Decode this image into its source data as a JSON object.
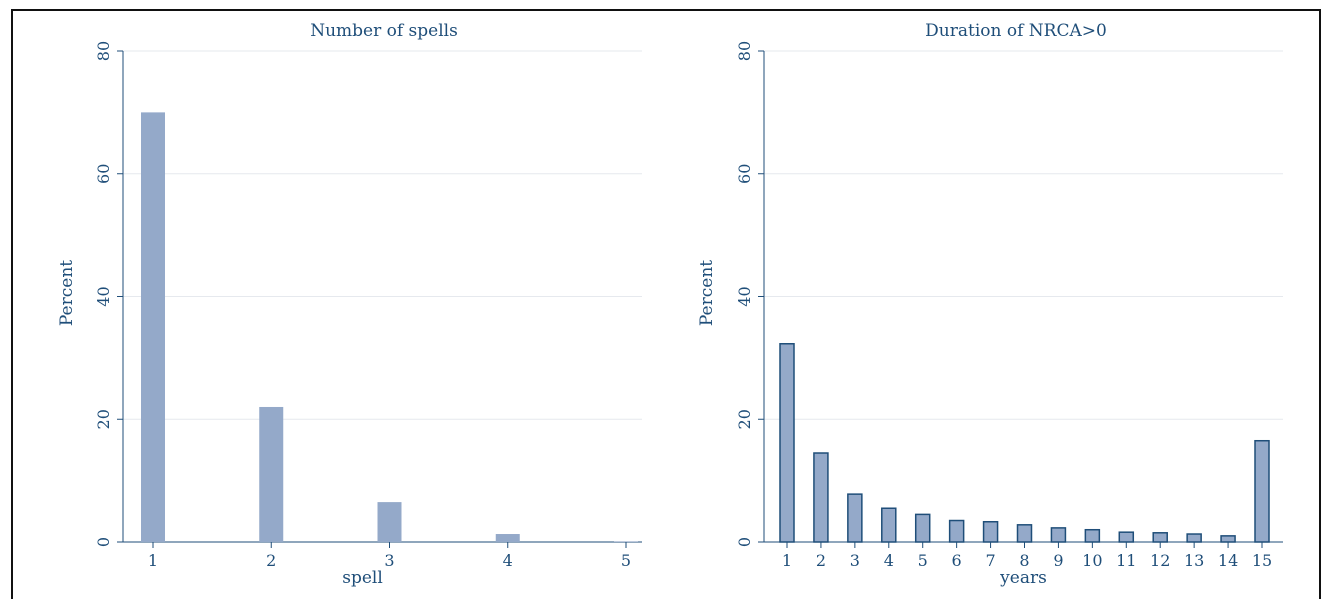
{
  "colors": {
    "bar_fill": "#94a9c9",
    "bar_edge": "#1f4e79",
    "text": "#1f4e79",
    "grid": "#e6e9ee",
    "axis": "#1f4e79"
  },
  "chart_data": [
    {
      "type": "bar",
      "title": "Number of spells",
      "xlabel": "spell",
      "ylabel": "Percent",
      "x": [
        1,
        2,
        3,
        4,
        5
      ],
      "x_ticks": [
        "1",
        "2",
        "3",
        "4",
        "5"
      ],
      "values": [
        70,
        22,
        6.5,
        1.3,
        0.1
      ],
      "ylim": [
        0,
        80
      ],
      "y_ticks": [
        "0",
        "20",
        "40",
        "60",
        "80"
      ],
      "grid": true,
      "bar_outline": false
    },
    {
      "type": "bar",
      "title": "Duration of NRCA>0",
      "xlabel": "years",
      "ylabel": "Percent",
      "x": [
        1,
        2,
        3,
        4,
        5,
        6,
        7,
        8,
        9,
        10,
        11,
        12,
        13,
        14,
        15
      ],
      "x_ticks": [
        "1",
        "2",
        "3",
        "4",
        "5",
        "6",
        "7",
        "8",
        "9",
        "10",
        "11",
        "12",
        "13",
        "14",
        "15"
      ],
      "values": [
        32.3,
        14.5,
        7.8,
        5.5,
        4.5,
        3.5,
        3.3,
        2.8,
        2.3,
        2.0,
        1.6,
        1.5,
        1.3,
        1.0,
        16.5
      ],
      "ylim": [
        0,
        80
      ],
      "y_ticks": [
        "0",
        "20",
        "40",
        "60",
        "80"
      ],
      "grid": true,
      "bar_outline": true
    }
  ]
}
